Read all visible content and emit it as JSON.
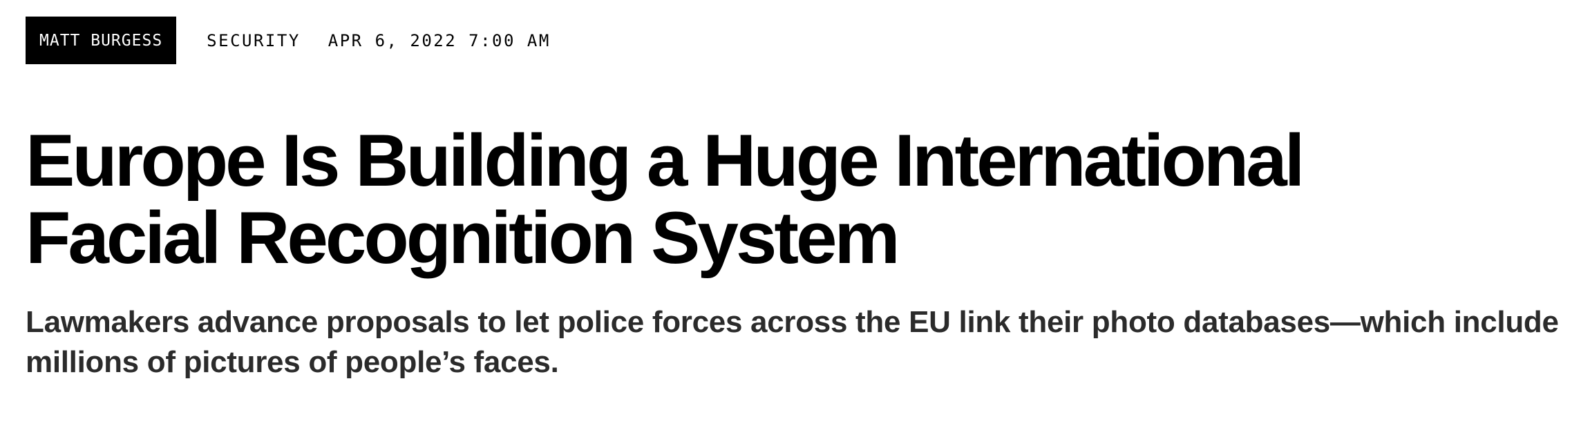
{
  "byline": {
    "author": "MATT BURGESS",
    "category": "SECURITY",
    "date": "APR 6, 2022 7:00 AM"
  },
  "article": {
    "headline_line1": "Europe Is Building a Huge International",
    "headline_line2": "Facial Recognition System",
    "dek": "Lawmakers advance proposals to let police forces across the EU link their photo databases—which include millions of pictures of people’s faces."
  },
  "colors": {
    "badge_bg": "#000000",
    "badge_text": "#ffffff",
    "headline": "#000000",
    "dek": "#2b2b2b"
  }
}
